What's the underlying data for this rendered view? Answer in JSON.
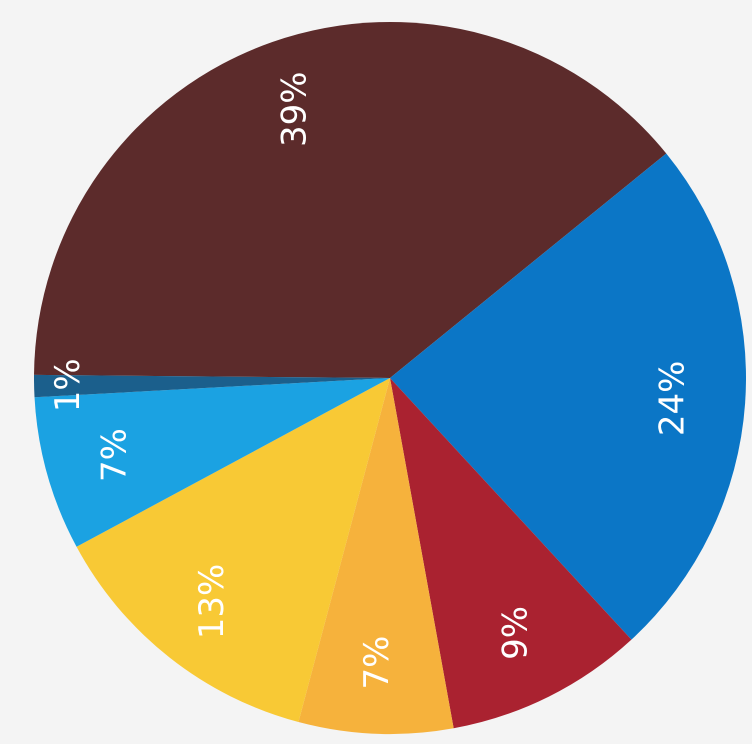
{
  "chart_data": {
    "type": "pie",
    "values": [
      39,
      24,
      9,
      7,
      13,
      7,
      1
    ],
    "value_labels": [
      "39%",
      "24%",
      "9%",
      "7%",
      "13%",
      "7%",
      "1%"
    ],
    "colors": [
      "#5c2b2b",
      "#0b76c6",
      "#aa2230",
      "#f6b23c",
      "#f8c935",
      "#1ba2e2",
      "#1b5f8c"
    ]
  }
}
